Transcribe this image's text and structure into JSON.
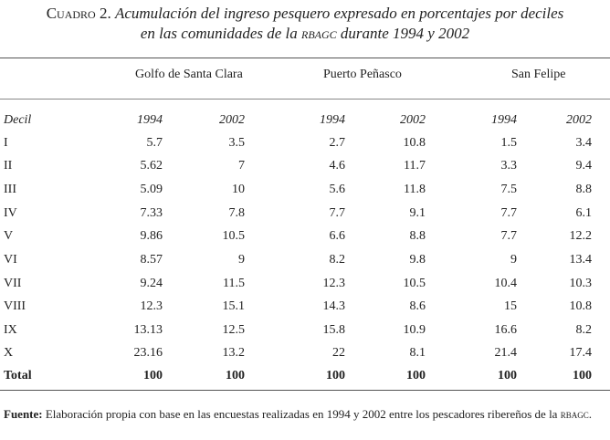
{
  "title": {
    "label": "Cuadro 2.",
    "line1": "Acumulación del ingreso pesquero expresado en porcentajes por deciles",
    "line2_pre": "en las comunidades de la",
    "line2_abbr": "rbagc",
    "line2_post": "durante 1994 y 2002"
  },
  "groups": [
    "Golfo de Santa Clara",
    "Puerto Peñasco",
    "San Felipe"
  ],
  "header": {
    "label": "Decil",
    "years": [
      "1994",
      "2002",
      "1994",
      "2002",
      "1994",
      "2002"
    ]
  },
  "rows": [
    {
      "decil": "I",
      "values": [
        "5.7",
        "3.5",
        "2.7",
        "10.8",
        "1.5",
        "3.4"
      ]
    },
    {
      "decil": "II",
      "values": [
        "5.62",
        "7",
        "4.6",
        "11.7",
        "3.3",
        "9.4"
      ]
    },
    {
      "decil": "III",
      "values": [
        "5.09",
        "10",
        "5.6",
        "11.8",
        "7.5",
        "8.8"
      ]
    },
    {
      "decil": "IV",
      "values": [
        "7.33",
        "7.8",
        "7.7",
        "9.1",
        "7.7",
        "6.1"
      ]
    },
    {
      "decil": "V",
      "values": [
        "9.86",
        "10.5",
        "6.6",
        "8.8",
        "7.7",
        "12.2"
      ]
    },
    {
      "decil": "VI",
      "values": [
        "8.57",
        "9",
        "8.2",
        "9.8",
        "9",
        "13.4"
      ]
    },
    {
      "decil": "VII",
      "values": [
        "9.24",
        "11.5",
        "12.3",
        "10.5",
        "10.4",
        "10.3"
      ]
    },
    {
      "decil": "VIII",
      "values": [
        "12.3",
        "15.1",
        "14.3",
        "8.6",
        "15",
        "10.8"
      ]
    },
    {
      "decil": "IX",
      "values": [
        "13.13",
        "12.5",
        "15.8",
        "10.9",
        "16.6",
        "8.2"
      ]
    },
    {
      "decil": "X",
      "values": [
        "23.16",
        "13.2",
        "22",
        "8.1",
        "21.4",
        "17.4"
      ]
    }
  ],
  "total": {
    "label": "Total",
    "values": [
      "100",
      "100",
      "100",
      "100",
      "100",
      "100"
    ]
  },
  "note": {
    "label": "Fuente:",
    "text": "Elaboración propia con base en las encuestas realizadas en 1994 y 2002 entre los pescadores ribereños de la",
    "abbr": "rbagc",
    "end": "."
  }
}
